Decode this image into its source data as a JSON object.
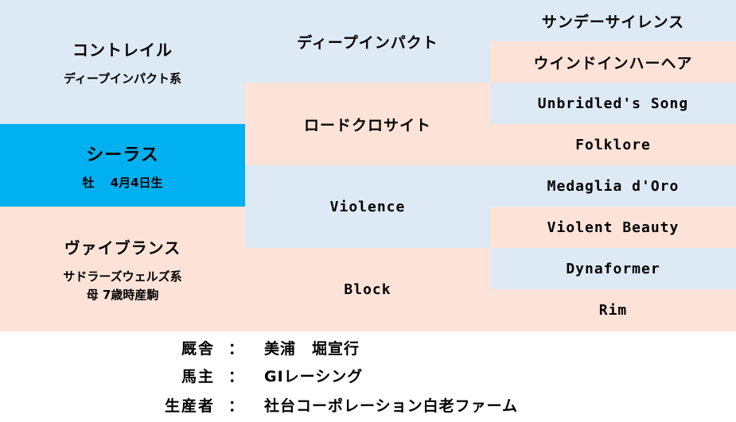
{
  "pedigree": {
    "sire": {
      "name": "コントレイル",
      "line": "ディープインパクト系"
    },
    "horse": {
      "name": "シーラス",
      "info": "牡　 4月4日生"
    },
    "dam": {
      "name": "ヴァイブランス",
      "line": "サドラーズウェルズ系",
      "note": "母 7歳時産駒"
    },
    "sire_sire": "ディープインパクト",
    "sire_dam": "ロードクロサイト",
    "dam_sire": "Violence",
    "dam_dam": "Block",
    "third_gen": [
      "サンデーサイレンス",
      "ウインドインハーヘア",
      "Unbridled's Song",
      "Folklore",
      "Medaglia d'Oro",
      "Violent Beauty",
      "Dynaformer",
      "Rim"
    ]
  },
  "info": [
    {
      "label": "厩舎",
      "sep": "：",
      "value": "美浦　堀宣行"
    },
    {
      "label": "馬主",
      "sep": "：",
      "value": "GIレーシング"
    },
    {
      "label": "生産者",
      "sep": "：",
      "value": "社台コーポレーション白老ファーム"
    }
  ],
  "colors": {
    "sire_side": "#dde9f5",
    "dam_side": "#fde3d7",
    "horse": "#00b0f0"
  }
}
